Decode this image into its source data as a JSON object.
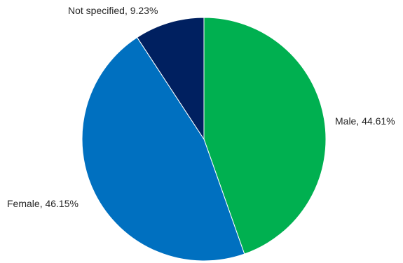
{
  "chart_data": {
    "type": "pie",
    "title": "",
    "start_angle": "12 o'clock",
    "direction": "clockwise",
    "slices": [
      {
        "label": "Male",
        "value": 44.61,
        "value_text": "44.61%",
        "color": "#00b050",
        "label_position": "right"
      },
      {
        "label": "Female",
        "value": 46.15,
        "value_text": "46.15%",
        "color": "#0070c0",
        "label_position": "left"
      },
      {
        "label": "Not specified",
        "value": 9.23,
        "value_text": "9.23%",
        "color": "#002060",
        "label_position": "top-left"
      }
    ]
  }
}
